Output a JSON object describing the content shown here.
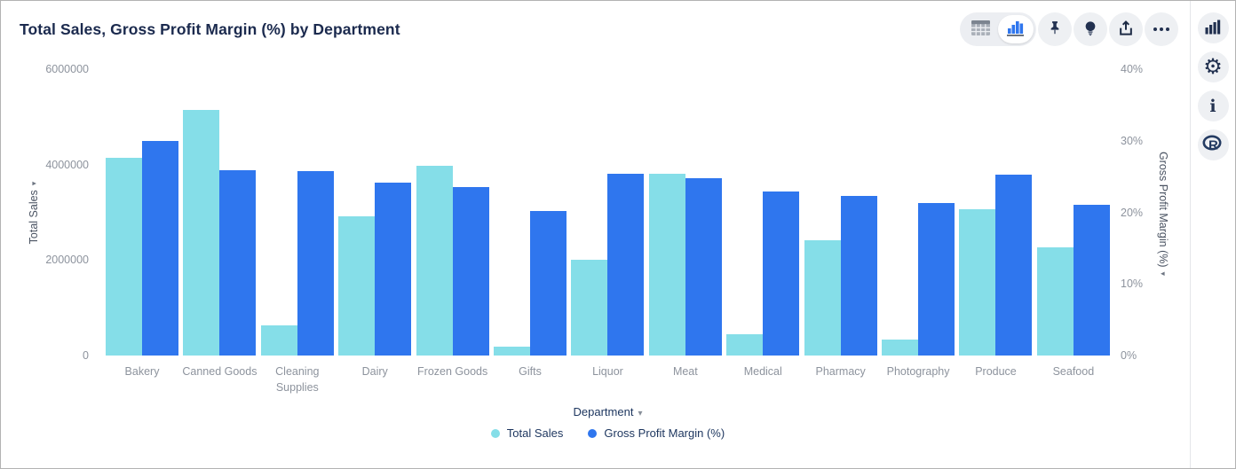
{
  "header": {
    "title": "Total Sales, Gross Profit Margin (%) by Department"
  },
  "toolbar": {
    "view_toggle": [
      {
        "name": "table-view",
        "icon": "table-icon",
        "selected": false
      },
      {
        "name": "chart-view",
        "icon": "bar-chart-icon",
        "selected": true
      }
    ],
    "buttons": [
      {
        "name": "pin",
        "icon": "pin-icon"
      },
      {
        "name": "insights",
        "icon": "lightbulb-icon"
      },
      {
        "name": "export",
        "icon": "share-icon"
      },
      {
        "name": "more",
        "icon": "ellipsis-icon"
      }
    ]
  },
  "rail": {
    "icons": [
      "bar-chart-icon",
      "gear-icon",
      "info-icon",
      "r-logo-icon"
    ]
  },
  "icons": {
    "caret_glyph": "▾",
    "gear_glyph": "⚙",
    "info_glyph": "i"
  },
  "colors": {
    "total_sales": "#85dee8",
    "gross_profit_margin": "#2f76ee",
    "title_navy": "#1b2a4e",
    "tick_gray": "#8d939d",
    "icon_navy": "#223150",
    "button_bg": "#eef0f3"
  },
  "chart_data": {
    "type": "bar",
    "title": "Total Sales, Gross Profit Margin (%) by Department",
    "grid": false,
    "legend_position": "bottom",
    "xlabel": "Department",
    "categories": [
      "Bakery",
      "Canned Goods",
      "Cleaning Supplies",
      "Dairy",
      "Frozen Goods",
      "Gifts",
      "Liquor",
      "Meat",
      "Medical",
      "Pharmacy",
      "Photography",
      "Produce",
      "Seafood"
    ],
    "series": [
      {
        "name": "Total Sales",
        "axis": "left",
        "color": "#85dee8",
        "values": [
          4150000,
          5150000,
          640000,
          2920000,
          3970000,
          180000,
          2000000,
          3810000,
          450000,
          2420000,
          340000,
          3070000,
          2270000
        ]
      },
      {
        "name": "Gross Profit Margin (%)",
        "axis": "right",
        "color": "#2f76ee",
        "values": [
          30.0,
          25.9,
          25.8,
          24.1,
          23.5,
          20.2,
          25.4,
          24.8,
          22.9,
          22.3,
          21.3,
          25.3,
          21.0
        ]
      }
    ],
    "left_axis": {
      "label": "Total Sales",
      "min": 0,
      "max": 6000000,
      "ticks": [
        "6000000",
        "4000000",
        "2000000",
        "0"
      ]
    },
    "right_axis": {
      "label": "Gross Profit Margin (%)",
      "min": 0,
      "max": 40,
      "ticks": [
        "40%",
        "30%",
        "20%",
        "10%",
        "0%"
      ]
    }
  }
}
